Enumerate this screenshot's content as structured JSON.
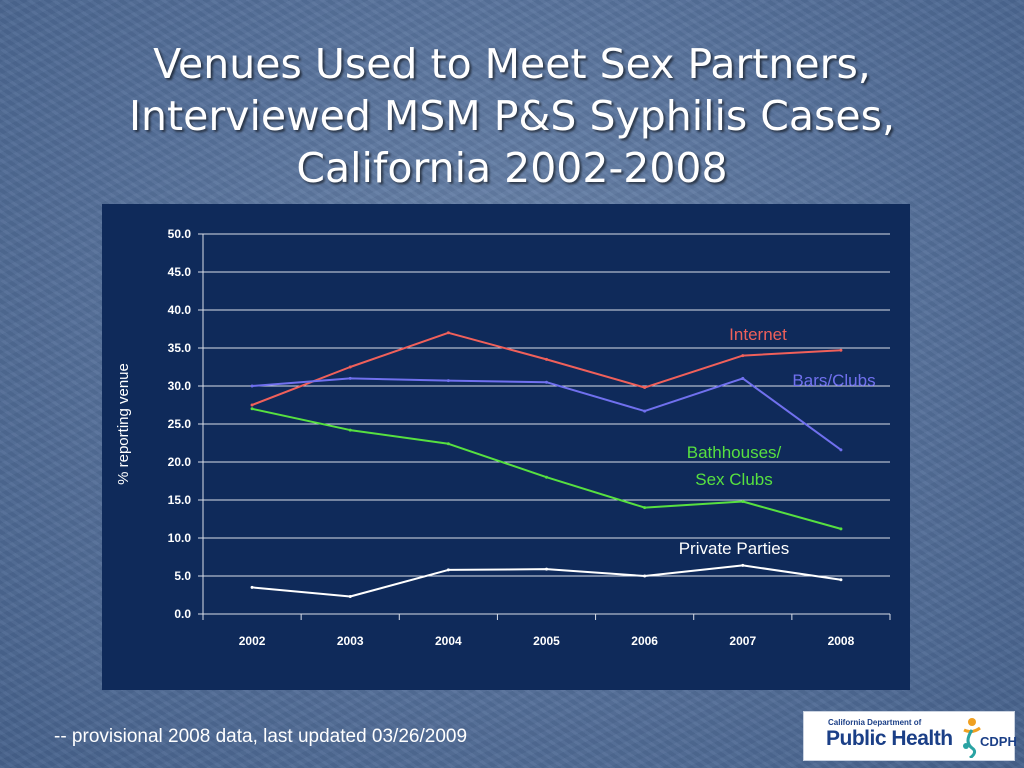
{
  "slide": {
    "title_lines": [
      "Venues Used to Meet Sex Partners,",
      "Interviewed MSM P&S Syphilis Cases,",
      "California 2002-2008"
    ],
    "footnote": "-- provisional 2008 data, last updated 03/26/2009",
    "logo": {
      "small_text": "California Department of",
      "big_text": "Public Health",
      "acronym": "CDPH"
    }
  },
  "chart_data": {
    "type": "line",
    "title": "",
    "xlabel": "",
    "ylabel": "% reporting venue",
    "categories": [
      "2002",
      "2003",
      "2004",
      "2005",
      "2006",
      "2007",
      "2008"
    ],
    "ylim": [
      0,
      50
    ],
    "yticks": [
      "0.0",
      "5.0",
      "10.0",
      "15.0",
      "20.0",
      "25.0",
      "30.0",
      "35.0",
      "40.0",
      "45.0",
      "50.0"
    ],
    "grid": true,
    "background": "#0f2a5a",
    "series": [
      {
        "name": "Internet",
        "label_lines": [
          "Internet"
        ],
        "color": "#f0605a",
        "values": [
          27.5,
          32.5,
          37.0,
          33.5,
          29.8,
          34.0,
          34.7
        ]
      },
      {
        "name": "Bars/Clubs",
        "label_lines": [
          "Bars/Clubs"
        ],
        "color": "#7070ee",
        "values": [
          30.0,
          31.0,
          30.7,
          30.5,
          26.7,
          31.0,
          21.6
        ]
      },
      {
        "name": "Bathhouses/ Sex Clubs",
        "label_lines": [
          "Bathhouses/",
          "Sex Clubs"
        ],
        "color": "#57e040",
        "values": [
          27.0,
          24.2,
          22.4,
          18.0,
          14.0,
          14.8,
          11.2
        ]
      },
      {
        "name": "Private Parties",
        "label_lines": [
          "Private Parties"
        ],
        "color": "#ffffff",
        "values": [
          3.5,
          2.3,
          5.8,
          5.9,
          5.0,
          6.4,
          4.5
        ]
      }
    ]
  }
}
